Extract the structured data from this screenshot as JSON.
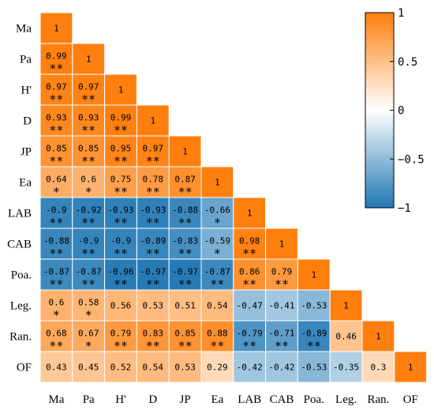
{
  "chart_data": {
    "type": "heatmap",
    "title": "",
    "variables": [
      "Ma",
      "Pa",
      "H'",
      "D",
      "JP",
      "Ea",
      "LAB",
      "CAB",
      "Poa.",
      "Leg.",
      "Ran.",
      "OF"
    ],
    "matrix": [
      [
        "1"
      ],
      [
        "0.99",
        "1"
      ],
      [
        "0.97",
        "0.97",
        "1"
      ],
      [
        "0.93",
        "0.93",
        "0.99",
        "1"
      ],
      [
        "0.85",
        "0.85",
        "0.95",
        "0.97",
        "1"
      ],
      [
        "0.64",
        "0.6",
        "0.75",
        "0.78",
        "0.87",
        "1"
      ],
      [
        "-0.9",
        "-0.92",
        "-0.93",
        "-0.93",
        "-0.88",
        "-0.66",
        "1"
      ],
      [
        "-0.88",
        "-0.9",
        "-0.9",
        "-0.89",
        "-0.83",
        "-0.59",
        "0.98",
        "1"
      ],
      [
        "-0.87",
        "-0.87",
        "-0.96",
        "-0.97",
        "-0.97",
        "-0.87",
        "0.86",
        "0.79",
        "1"
      ],
      [
        "0.6",
        "0.58",
        "0.56",
        "0.53",
        "0.51",
        "0.54",
        "-0.47",
        "-0.41",
        "-0.53",
        "1"
      ],
      [
        "0.68",
        "0.67",
        "0.79",
        "0.83",
        "0.85",
        "0.88",
        "-0.79",
        "-0.71",
        "-0.89",
        "0.46",
        "1"
      ],
      [
        "0.43",
        "0.45",
        "0.52",
        "0.54",
        "0.53",
        "0.29",
        "-0.42",
        "-0.42",
        "-0.53",
        "-0.35",
        "0.3",
        "1"
      ]
    ],
    "significance": [
      [
        ""
      ],
      [
        "**",
        ""
      ],
      [
        "**",
        "**",
        ""
      ],
      [
        "**",
        "**",
        "**",
        ""
      ],
      [
        "**",
        "**",
        "**",
        "**",
        ""
      ],
      [
        "*",
        "*",
        "**",
        "**",
        "**",
        ""
      ],
      [
        "**",
        "**",
        "**",
        "**",
        "**",
        "*",
        ""
      ],
      [
        "**",
        "**",
        "**",
        "**",
        "**",
        "*",
        "**",
        ""
      ],
      [
        "**",
        "**",
        "**",
        "**",
        "**",
        "**",
        "**",
        "**",
        ""
      ],
      [
        "*",
        "*",
        "",
        "",
        "",
        "",
        "",
        "",
        "",
        ""
      ],
      [
        "**",
        "*",
        "**",
        "**",
        "**",
        "**",
        "**",
        "**",
        "**",
        "",
        ""
      ],
      [
        "",
        "",
        "",
        "",
        "",
        "",
        "",
        "",
        "",
        "",
        "",
        ""
      ]
    ],
    "colorscale": {
      "min": -1,
      "max": 1,
      "colors": [
        "#1f77b4",
        "#ffffff",
        "#ff7f0e"
      ],
      "ticks": [
        {
          "value": 1,
          "label": "1"
        },
        {
          "value": 0.5,
          "label": "0.5"
        },
        {
          "value": 0,
          "label": "0"
        },
        {
          "value": -0.5,
          "label": "−0.5"
        },
        {
          "value": -1,
          "label": "−1"
        }
      ],
      "position": "top-right"
    },
    "grid": true
  }
}
